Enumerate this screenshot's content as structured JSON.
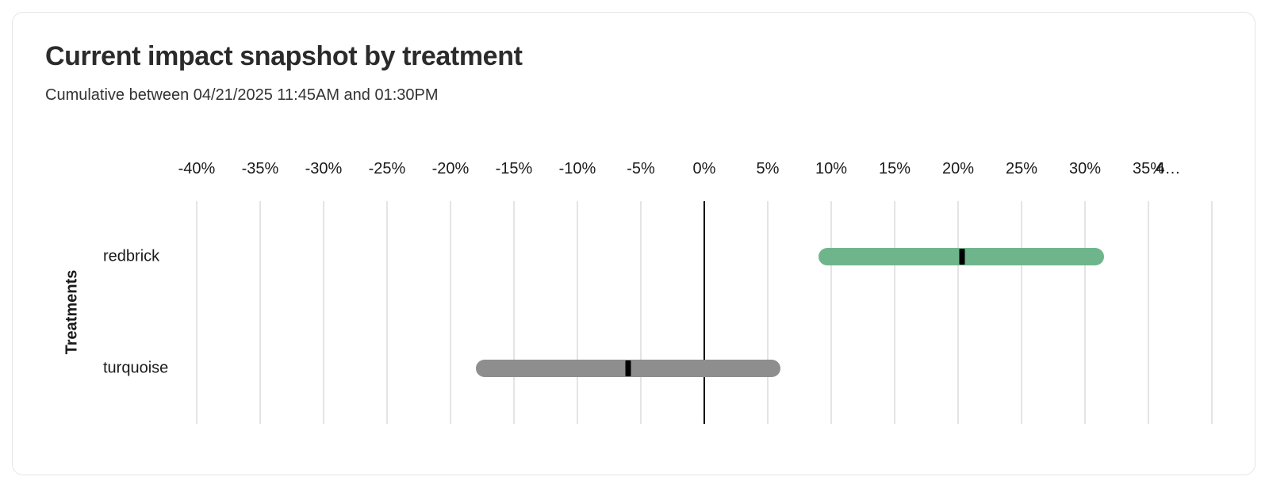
{
  "chart_data": {
    "type": "bar",
    "orientation": "horizontal",
    "title": "Current impact snapshot by treatment",
    "subtitle": "Cumulative between 04/21/2025 11:45AM and 01:30PM",
    "ylabel": "Treatments",
    "xlabel": "",
    "units": "%",
    "xlim": [
      -40,
      40
    ],
    "grid": true,
    "zero_line": true,
    "x_ticks": [
      {
        "value": -40,
        "label": "-40%"
      },
      {
        "value": -35,
        "label": "-35%"
      },
      {
        "value": -30,
        "label": "-30%"
      },
      {
        "value": -25,
        "label": "-25%"
      },
      {
        "value": -20,
        "label": "-20%"
      },
      {
        "value": -15,
        "label": "-15%"
      },
      {
        "value": -10,
        "label": "-10%"
      },
      {
        "value": -5,
        "label": "-5%"
      },
      {
        "value": 0,
        "label": "0%"
      },
      {
        "value": 5,
        "label": "5%"
      },
      {
        "value": 10,
        "label": "10%"
      },
      {
        "value": 15,
        "label": "15%"
      },
      {
        "value": 20,
        "label": "20%"
      },
      {
        "value": 25,
        "label": "25%"
      },
      {
        "value": 30,
        "label": "30%"
      },
      {
        "value": 35,
        "label": "35%"
      },
      {
        "value": 40,
        "label": "4…",
        "truncated": true
      }
    ],
    "categories": [
      "redbrick",
      "turquoise"
    ],
    "series": [
      {
        "name": "redbrick",
        "ci_low": 9,
        "ci_high": 31.5,
        "estimate": 20.3,
        "color": "#6fb58c"
      },
      {
        "name": "turquoise",
        "ci_low": -18,
        "ci_high": 6,
        "estimate": -6,
        "color": "#8e8e8e"
      }
    ],
    "marker_color": "#000000",
    "colors": {
      "positive_bar": "#6fb58c",
      "neutral_bar": "#8e8e8e",
      "gridline": "#e4e4e4",
      "zero_line": "#000000"
    }
  }
}
